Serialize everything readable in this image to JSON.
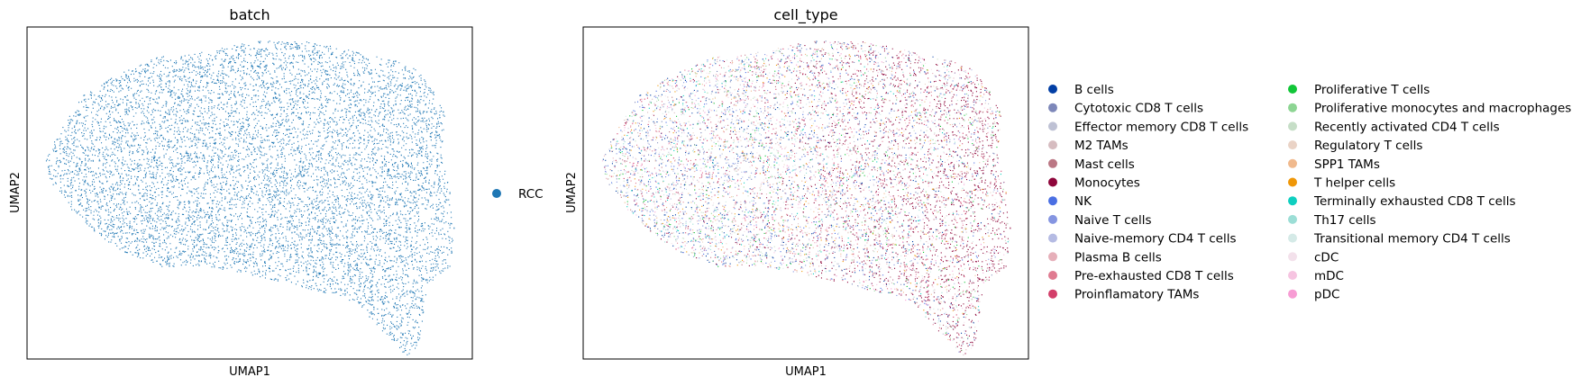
{
  "panels": [
    {
      "chart_data": {
        "type": "scatter",
        "title": "batch",
        "xlabel": "UMAP1",
        "ylabel": "UMAP2",
        "grid": false,
        "ticks": false,
        "legend_position": "right",
        "n_points_approx": 13000,
        "categories": [
          {
            "name": "RCC",
            "color": "#1f77b4"
          }
        ]
      }
    },
    {
      "chart_data": {
        "type": "scatter",
        "title": "cell_type",
        "xlabel": "UMAP1",
        "ylabel": "UMAP2",
        "grid": false,
        "ticks": false,
        "legend_position": "right",
        "legend_columns": 2,
        "n_points_approx": 13000,
        "categories": [
          {
            "name": "B cells",
            "color": "#023fa5"
          },
          {
            "name": "Cytotoxic CD8 T cells",
            "color": "#7d87b9"
          },
          {
            "name": "Effector memory CD8 T cells",
            "color": "#bec1d4"
          },
          {
            "name": "M2 TAMs",
            "color": "#d6bcc0"
          },
          {
            "name": "Mast cells",
            "color": "#bb7784"
          },
          {
            "name": "Monocytes",
            "color": "#8e063b"
          },
          {
            "name": "NK",
            "color": "#4a6fe3"
          },
          {
            "name": "Naive T cells",
            "color": "#8595e1"
          },
          {
            "name": "Naive-memory CD4 T cells",
            "color": "#b5bbe3"
          },
          {
            "name": "Plasma B cells",
            "color": "#e6afb9"
          },
          {
            "name": "Pre-exhausted CD8 T cells",
            "color": "#e07b91"
          },
          {
            "name": "Proinflamatory TAMs",
            "color": "#d33f6a"
          },
          {
            "name": "Proliferative T cells",
            "color": "#11c638"
          },
          {
            "name": "Proliferative monocytes and macrophages",
            "color": "#8dd593"
          },
          {
            "name": "Recently activated CD4 T cells",
            "color": "#c6dec7"
          },
          {
            "name": "Regulatory T cells",
            "color": "#ead3c6"
          },
          {
            "name": "SPP1 TAMs",
            "color": "#f0b98d"
          },
          {
            "name": "T helper cells",
            "color": "#ef9708"
          },
          {
            "name": "Terminally exhausted CD8 T cells",
            "color": "#0fcfc0"
          },
          {
            "name": "Th17 cells",
            "color": "#9cded6"
          },
          {
            "name": "Transitional memory CD4 T cells",
            "color": "#d5eae7"
          },
          {
            "name": "cDC",
            "color": "#f3e1eb"
          },
          {
            "name": "mDC",
            "color": "#f6c4e1"
          },
          {
            "name": "pDC",
            "color": "#f79cd4"
          }
        ]
      }
    }
  ]
}
